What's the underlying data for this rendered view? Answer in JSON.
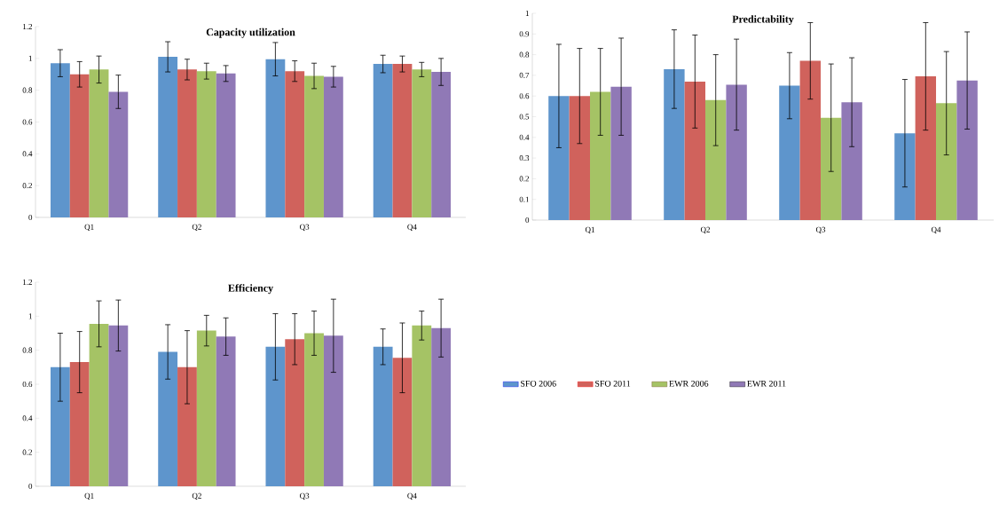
{
  "chart_data": [
    {
      "type": "bar",
      "title": "Capacity utilization",
      "categories": [
        "Q1",
        "Q2",
        "Q3",
        "Q4"
      ],
      "ylim": [
        0,
        1.2
      ],
      "yticks": [
        0,
        0.2,
        0.4,
        0.6,
        0.8,
        1,
        1.2
      ],
      "series": [
        {
          "color": "#5e95cc",
          "values": [
            0.97,
            1.01,
            0.995,
            0.965
          ],
          "errors": [
            0.085,
            0.095,
            0.105,
            0.055
          ]
        },
        {
          "color": "#d0625c",
          "values": [
            0.9,
            0.93,
            0.92,
            0.965
          ],
          "errors": [
            0.08,
            0.065,
            0.065,
            0.05
          ]
        },
        {
          "color": "#a5c365",
          "values": [
            0.93,
            0.92,
            0.89,
            0.93
          ],
          "errors": [
            0.085,
            0.05,
            0.08,
            0.045
          ]
        },
        {
          "color": "#9079b6",
          "values": [
            0.79,
            0.905,
            0.885,
            0.915
          ],
          "errors": [
            0.105,
            0.05,
            0.065,
            0.085
          ]
        }
      ]
    },
    {
      "type": "bar",
      "title": "Predictability",
      "categories": [
        "Q1",
        "Q2",
        "Q3",
        "Q4"
      ],
      "ylim": [
        0,
        1
      ],
      "yticks": [
        0,
        0.1,
        0.2,
        0.3,
        0.4,
        0.5,
        0.6,
        0.7,
        0.8,
        0.9,
        1
      ],
      "series": [
        {
          "color": "#5e95cc",
          "values": [
            0.6,
            0.73,
            0.65,
            0.42
          ],
          "errors": [
            0.25,
            0.19,
            0.16,
            0.26
          ]
        },
        {
          "color": "#d0625c",
          "values": [
            0.6,
            0.67,
            0.77,
            0.695
          ],
          "errors": [
            0.23,
            0.225,
            0.185,
            0.26
          ]
        },
        {
          "color": "#a5c365",
          "values": [
            0.62,
            0.58,
            0.495,
            0.565
          ],
          "errors": [
            0.21,
            0.22,
            0.26,
            0.25
          ]
        },
        {
          "color": "#9079b6",
          "values": [
            0.645,
            0.655,
            0.57,
            0.675
          ],
          "errors": [
            0.235,
            0.22,
            0.215,
            0.235
          ]
        }
      ]
    },
    {
      "type": "bar",
      "title": "Efficiency",
      "categories": [
        "Q1",
        "Q2",
        "Q3",
        "Q4"
      ],
      "ylim": [
        0,
        1.2
      ],
      "yticks": [
        0,
        0.2,
        0.4,
        0.6,
        0.8,
        1,
        1.2
      ],
      "legend": "right",
      "series": [
        {
          "name": "SFO 2006",
          "color": "#5e95cc",
          "values": [
            0.7,
            0.79,
            0.82,
            0.82
          ],
          "errors": [
            0.2,
            0.16,
            0.195,
            0.105
          ]
        },
        {
          "name": "SFO 2011",
          "color": "#d0625c",
          "values": [
            0.73,
            0.7,
            0.865,
            0.755
          ],
          "errors": [
            0.18,
            0.215,
            0.15,
            0.205
          ]
        },
        {
          "name": "EWR 2006",
          "color": "#a5c365",
          "values": [
            0.955,
            0.915,
            0.9,
            0.945
          ],
          "errors": [
            0.135,
            0.09,
            0.13,
            0.085
          ]
        },
        {
          "name": "EWR 2011",
          "color": "#9079b6",
          "values": [
            0.945,
            0.88,
            0.885,
            0.93
          ],
          "errors": [
            0.15,
            0.11,
            0.215,
            0.17
          ]
        }
      ]
    }
  ]
}
